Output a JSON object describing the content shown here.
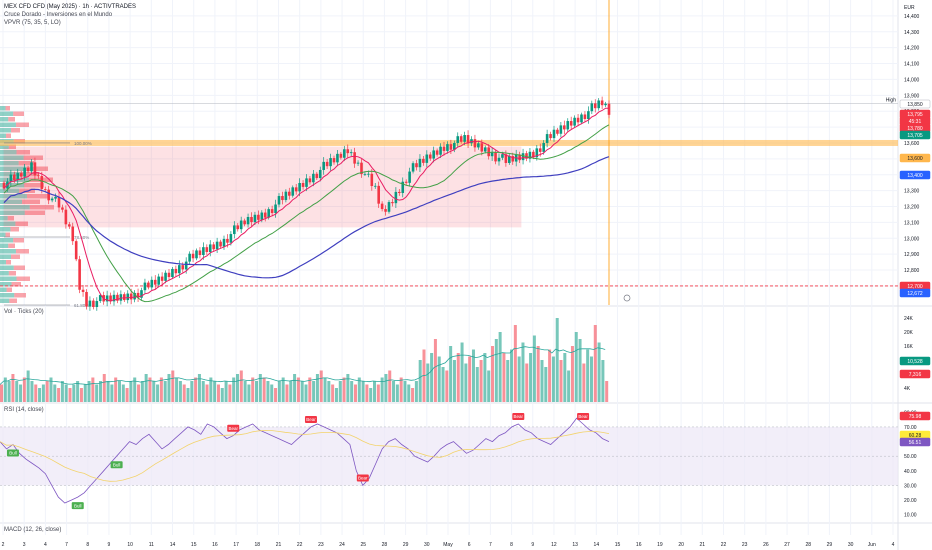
{
  "header": {
    "title": "MEX CFD CFD (May 2025) · 1h · ACTIVTRADES",
    "indicator1": "Cruce Dorado - Inversiones en el Mundo",
    "indicator2": "VPVR (75, 35, 5, LO)"
  },
  "price_panel": {
    "currency": "EUR",
    "axis_labels": [
      "14,400",
      "14,300",
      "14,200",
      "14,100",
      "14,000",
      "13,900",
      "13,800",
      "13,700",
      "13,600",
      "13,500",
      "13,400",
      "13,300",
      "13,200",
      "13,100",
      "13,000",
      "12,900",
      "12,800",
      "12,700"
    ],
    "high_label": "High",
    "badges": [
      {
        "text": "13,850",
        "color": "#ffffff",
        "text_color": "#131722"
      },
      {
        "text": "13,795",
        "color": "#f23645",
        "text_color": "#ffffff"
      },
      {
        "text": "45:31",
        "color": "#f23645",
        "text_color": "#ffffff"
      },
      {
        "text": "13,780",
        "color": "#f23645",
        "text_color": "#ffffff"
      },
      {
        "text": "13,705",
        "color": "#089981",
        "text_color": "#ffffff"
      },
      {
        "text": "13,600",
        "color": "#ffb74d",
        "text_color": "#131722"
      },
      {
        "text": "13,400",
        "color": "#2962ff",
        "text_color": "#ffffff"
      },
      {
        "text": "12,700",
        "color": "#f23645",
        "text_color": "#ffffff"
      },
      {
        "text": "12,672",
        "color": "#2962ff",
        "text_color": "#ffffff"
      }
    ],
    "fib_labels": [
      "100.00%",
      "78.60%",
      "61.80%"
    ],
    "colors": {
      "up": "#089981",
      "down": "#f23645",
      "ma_fast": "#e91e63",
      "ma_mid": "#43a047",
      "ma_slow": "#3f3fbf",
      "zone": "#ffb74d"
    }
  },
  "volume_panel": {
    "title": "Vol · Ticks (20)",
    "axis_labels": [
      "24K",
      "20K",
      "16K",
      "12K",
      "8K",
      "4K"
    ],
    "badges": [
      {
        "text": "10,528",
        "color": "#089981"
      },
      {
        "text": "7,316",
        "color": "#f23645"
      }
    ]
  },
  "rsi_panel": {
    "title": "RSI (14, close)",
    "axis_labels": [
      "80.00",
      "70.00",
      "60.00",
      "50.00",
      "40.00",
      "30.00",
      "20.00",
      "10.00"
    ],
    "badges": [
      {
        "text": "75.98",
        "color": "#f23645"
      },
      {
        "text": "60.28",
        "color": "#ffeb3b"
      },
      {
        "text": "56.51",
        "color": "#7e57c2"
      }
    ],
    "bear_label": "Bear",
    "bull_label": "Bull",
    "colors": {
      "line": "#7e57c2",
      "band": "#ede7f6",
      "ma": "#f3d36b"
    }
  },
  "macd_panel": {
    "title": "MACD (12, 26, close)"
  },
  "chart_data": {
    "type": "candlestick",
    "title": "MEX CFD CFD (May 2025) · 1h · ACTIVTRADES",
    "x_ticks": [
      "2",
      "3",
      "4",
      "7",
      "8",
      "9",
      "10",
      "11",
      "14",
      "15",
      "16",
      "17",
      "18",
      "21",
      "22",
      "23",
      "24",
      "25",
      "28",
      "29",
      "30",
      "May",
      "6",
      "7",
      "8",
      "9",
      "12",
      "13",
      "14",
      "15",
      "16",
      "19",
      "20",
      "21",
      "22",
      "23",
      "26",
      "27",
      "28",
      "29",
      "30",
      "Jun",
      "4"
    ],
    "ylim": [
      12580,
      14500
    ],
    "key_levels": {
      "high": 13850,
      "last": 13795,
      "zone": 13600,
      "ma_slow": 13400,
      "dashed": 12700
    },
    "close_path": [
      [
        0,
        13350
      ],
      [
        4,
        13380
      ],
      [
        8,
        13460
      ],
      [
        12,
        13300
      ],
      [
        16,
        13200
      ],
      [
        20,
        13000
      ],
      [
        22,
        12700
      ],
      [
        24,
        12600
      ],
      [
        30,
        12610
      ],
      [
        38,
        12650
      ],
      [
        44,
        12720
      ],
      [
        52,
        12840
      ],
      [
        58,
        12920
      ],
      [
        64,
        12990
      ],
      [
        70,
        13100
      ],
      [
        76,
        13160
      ],
      [
        80,
        13230
      ],
      [
        86,
        13330
      ],
      [
        90,
        13400
      ],
      [
        96,
        13490
      ],
      [
        100,
        13560
      ],
      [
        104,
        13440
      ],
      [
        108,
        13300
      ],
      [
        110,
        13160
      ],
      [
        112,
        13210
      ],
      [
        118,
        13420
      ],
      [
        124,
        13520
      ],
      [
        128,
        13580
      ],
      [
        134,
        13620
      ],
      [
        140,
        13560
      ],
      [
        146,
        13480
      ],
      [
        150,
        13510
      ],
      [
        154,
        13540
      ],
      [
        158,
        13620
      ],
      [
        164,
        13720
      ],
      [
        170,
        13800
      ],
      [
        174,
        13850
      ],
      [
        176,
        13795
      ]
    ],
    "volume": [
      5,
      7,
      6,
      8,
      6,
      5,
      7,
      9,
      6,
      5,
      4,
      5,
      6,
      7,
      5,
      4,
      6,
      5,
      4,
      5,
      6,
      4,
      5,
      6,
      7,
      5,
      6,
      8,
      6,
      5,
      7,
      6,
      5,
      4,
      6,
      7,
      5,
      6,
      8,
      7,
      6,
      5,
      7,
      6,
      8,
      9,
      7,
      6,
      5,
      4,
      6,
      7,
      8,
      6,
      5,
      7,
      6,
      5,
      4,
      6,
      5,
      7,
      8,
      9,
      6,
      5,
      7,
      6,
      8,
      7,
      6,
      5,
      4,
      6,
      7,
      5,
      6,
      8,
      7,
      6,
      5,
      7,
      6,
      8,
      9,
      7,
      6,
      5,
      4,
      6,
      7,
      8,
      6,
      5,
      7,
      6,
      5,
      4,
      6,
      5,
      7,
      8,
      9,
      6,
      5,
      7,
      6,
      5,
      4,
      6,
      12,
      15,
      11,
      14,
      18,
      13,
      10,
      9,
      16,
      12,
      14,
      17,
      11,
      13,
      15,
      10,
      12,
      14,
      9,
      16,
      18,
      20,
      14,
      12,
      15,
      22,
      13,
      17,
      11,
      14,
      19,
      16,
      12,
      10,
      15,
      13,
      24,
      12,
      14,
      9,
      16,
      20,
      18,
      11,
      15,
      13,
      22,
      17,
      12,
      6
    ],
    "rsi": [
      60,
      55,
      58,
      52,
      48,
      45,
      42,
      38,
      30,
      22,
      18,
      20,
      22,
      25,
      30,
      35,
      40,
      45,
      50,
      55,
      60,
      58,
      62,
      65,
      60,
      55,
      58,
      62,
      66,
      70,
      68,
      65,
      72,
      70,
      66,
      62,
      64,
      68,
      70,
      72,
      68,
      66,
      64,
      62,
      60,
      58,
      62,
      66,
      70,
      72,
      70,
      68,
      66,
      62,
      58,
      40,
      30,
      35,
      45,
      55,
      60,
      62,
      58,
      55,
      50,
      48,
      46,
      50,
      55,
      58,
      60,
      56,
      52,
      54,
      58,
      62,
      60,
      64,
      66,
      70,
      72,
      68,
      66,
      62,
      60,
      58,
      62,
      66,
      70,
      76,
      72,
      68,
      66,
      62,
      60
    ],
    "rsi_signals": [
      {
        "type": "Bull",
        "index": 2
      },
      {
        "type": "Bull",
        "index": 12
      },
      {
        "type": "Bull",
        "index": 18
      },
      {
        "type": "Bear",
        "index": 36
      },
      {
        "type": "Bear",
        "index": 48
      },
      {
        "type": "Bear",
        "index": 56
      },
      {
        "type": "Bear",
        "index": 80
      },
      {
        "type": "Bear",
        "index": 90
      }
    ]
  }
}
